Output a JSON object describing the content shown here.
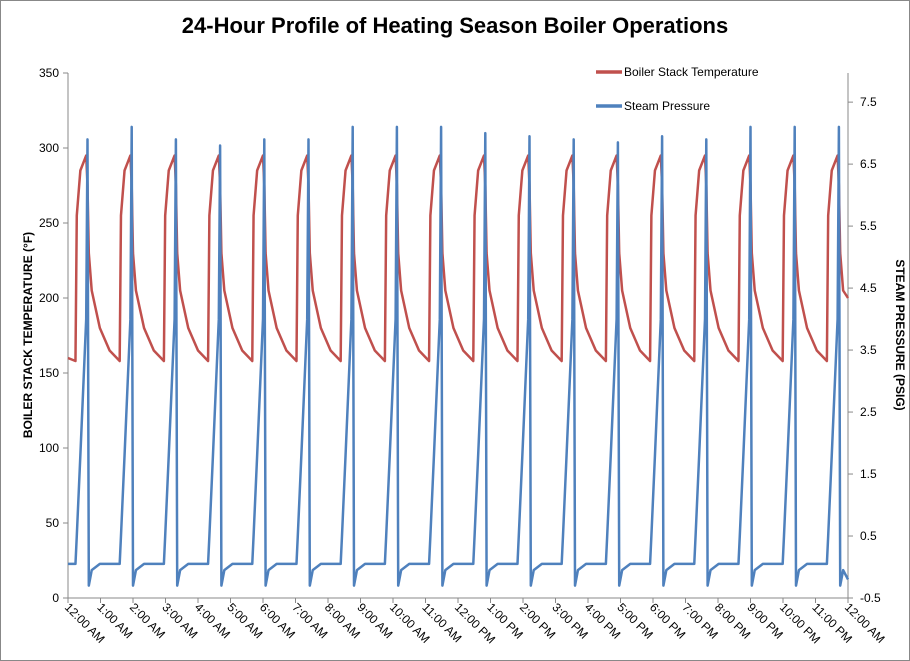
{
  "chart_data": {
    "type": "line",
    "title": "24-Hour Profile of Heating Season Boiler Operations",
    "ylabel": "BOILER STACK TEMPERATURE (°F)",
    "y2label": "STEAM PRESSURE (PSIG)",
    "legend": "top-right",
    "xlim": [
      0,
      24
    ],
    "xticks": [
      {
        "value": 0,
        "label": "12:00 AM"
      },
      {
        "value": 1,
        "label": "1:00 AM"
      },
      {
        "value": 2,
        "label": "2:00 AM"
      },
      {
        "value": 3,
        "label": "3:00 AM"
      },
      {
        "value": 4,
        "label": "4:00 AM"
      },
      {
        "value": 5,
        "label": "5:00 AM"
      },
      {
        "value": 6,
        "label": "6:00 AM"
      },
      {
        "value": 7,
        "label": "7:00 AM"
      },
      {
        "value": 8,
        "label": "8:00 AM"
      },
      {
        "value": 9,
        "label": "9:00 AM"
      },
      {
        "value": 10,
        "label": "10:00 AM"
      },
      {
        "value": 11,
        "label": "11:00 AM"
      },
      {
        "value": 12,
        "label": "12:00 PM"
      },
      {
        "value": 13,
        "label": "1:00 PM"
      },
      {
        "value": 14,
        "label": "2:00 PM"
      },
      {
        "value": 15,
        "label": "3:00 PM"
      },
      {
        "value": 16,
        "label": "4:00 PM"
      },
      {
        "value": 17,
        "label": "5:00 PM"
      },
      {
        "value": 18,
        "label": "6:00 PM"
      },
      {
        "value": 19,
        "label": "7:00 PM"
      },
      {
        "value": 20,
        "label": "8:00 PM"
      },
      {
        "value": 21,
        "label": "9:00 PM"
      },
      {
        "value": 22,
        "label": "10:00 PM"
      },
      {
        "value": 23,
        "label": "11:00 PM"
      },
      {
        "value": 24,
        "label": "12:00 AM"
      }
    ],
    "ylim": [
      0,
      350
    ],
    "yticks": [
      0,
      50,
      100,
      150,
      200,
      250,
      300,
      350
    ],
    "y2lim": [
      -0.5,
      7.97
    ],
    "y2ticks": [
      -0.5,
      0.5,
      1.5,
      2.5,
      3.5,
      4.5,
      5.5,
      6.5,
      7.5
    ],
    "x": [
      0,
      0.23,
      0.27,
      0.38,
      0.56,
      0.6,
      0.64,
      0.73,
      0.98,
      1.28,
      1.59,
      1.63,
      1.74,
      1.92,
      1.96,
      2.0,
      2.09,
      2.34,
      2.64,
      2.95,
      2.99,
      3.1,
      3.28,
      3.32,
      3.36,
      3.45,
      3.7,
      4.0,
      4.31,
      4.35,
      4.46,
      4.64,
      4.68,
      4.72,
      4.81,
      5.06,
      5.36,
      5.67,
      5.71,
      5.82,
      6.0,
      6.04,
      6.08,
      6.17,
      6.42,
      6.72,
      7.03,
      7.07,
      7.18,
      7.36,
      7.4,
      7.44,
      7.53,
      7.78,
      8.08,
      8.39,
      8.43,
      8.54,
      8.72,
      8.76,
      8.8,
      8.89,
      9.14,
      9.44,
      9.75,
      9.79,
      9.9,
      10.08,
      10.12,
      10.16,
      10.25,
      10.5,
      10.8,
      11.11,
      11.15,
      11.26,
      11.44,
      11.48,
      11.52,
      11.61,
      11.86,
      12.16,
      12.47,
      12.51,
      12.62,
      12.8,
      12.84,
      12.88,
      12.97,
      13.22,
      13.52,
      13.83,
      13.87,
      13.98,
      14.16,
      14.2,
      14.24,
      14.33,
      14.58,
      14.88,
      15.19,
      15.23,
      15.34,
      15.52,
      15.56,
      15.6,
      15.69,
      15.94,
      16.24,
      16.55,
      16.59,
      16.7,
      16.88,
      16.92,
      16.96,
      17.05,
      17.3,
      17.6,
      17.91,
      17.95,
      18.06,
      18.24,
      18.28,
      18.32,
      18.41,
      18.66,
      18.96,
      19.27,
      19.31,
      19.42,
      19.6,
      19.64,
      19.68,
      19.77,
      20.02,
      20.32,
      20.63,
      20.67,
      20.78,
      20.96,
      21.0,
      21.04,
      21.13,
      21.38,
      21.68,
      21.99,
      22.03,
      22.14,
      22.32,
      22.36,
      22.4,
      22.49,
      22.74,
      23.04,
      23.35,
      23.39,
      23.5,
      23.68,
      23.72,
      23.76,
      23.85,
      24.0
    ],
    "series": [
      {
        "name": "Boiler Stack Temperature",
        "color": "#c0504d",
        "values": [
          160,
          158,
          255,
          285,
          295,
          275,
          230,
          205,
          180,
          165,
          158,
          255,
          285,
          295,
          275,
          230,
          205,
          180,
          165,
          158,
          255,
          285,
          295,
          275,
          230,
          205,
          180,
          165,
          158,
          255,
          285,
          295,
          275,
          230,
          205,
          180,
          165,
          158,
          255,
          285,
          295,
          275,
          230,
          205,
          180,
          165,
          158,
          255,
          285,
          295,
          275,
          230,
          205,
          180,
          165,
          158,
          255,
          285,
          295,
          275,
          230,
          205,
          180,
          165,
          158,
          255,
          285,
          295,
          275,
          230,
          205,
          180,
          165,
          158,
          255,
          285,
          295,
          275,
          230,
          205,
          180,
          165,
          158,
          255,
          285,
          295,
          275,
          230,
          205,
          180,
          165,
          158,
          255,
          285,
          295,
          275,
          230,
          205,
          180,
          165,
          158,
          255,
          285,
          295,
          275,
          230,
          205,
          180,
          165,
          158,
          255,
          285,
          295,
          275,
          230,
          205,
          180,
          165,
          158,
          255,
          285,
          295,
          275,
          230,
          205,
          180,
          165,
          158,
          255,
          285,
          295,
          275,
          230,
          205,
          180,
          165,
          158,
          255,
          285,
          295,
          275,
          230,
          205,
          180,
          165,
          158,
          255,
          285,
          295,
          275,
          230,
          205,
          180,
          165,
          158,
          255,
          285,
          295,
          275,
          230,
          205,
          200
        ]
      },
      {
        "name": "Steam Pressure",
        "color": "#4f81bd",
        "axis": "y2",
        "values": [
          0.05,
          0.05,
          0.5,
          1.8,
          4.0,
          6.9,
          -0.3,
          -0.05,
          0.05,
          0.05,
          0.05,
          0.5,
          1.8,
          4.0,
          7.1,
          -0.3,
          -0.05,
          0.05,
          0.05,
          0.05,
          0.5,
          1.8,
          4.0,
          6.9,
          -0.3,
          -0.05,
          0.05,
          0.05,
          0.05,
          0.5,
          1.8,
          4.0,
          6.8,
          -0.3,
          -0.05,
          0.05,
          0.05,
          0.05,
          0.5,
          1.8,
          4.0,
          6.9,
          -0.3,
          -0.05,
          0.05,
          0.05,
          0.05,
          0.5,
          1.8,
          4.0,
          6.9,
          -0.3,
          -0.05,
          0.05,
          0.05,
          0.05,
          0.5,
          1.8,
          4.0,
          7.1,
          -0.3,
          -0.05,
          0.05,
          0.05,
          0.05,
          0.5,
          1.8,
          4.0,
          7.1,
          -0.3,
          -0.05,
          0.05,
          0.05,
          0.05,
          0.5,
          1.8,
          4.0,
          7.1,
          -0.3,
          -0.05,
          0.05,
          0.05,
          0.05,
          0.5,
          1.8,
          4.0,
          7.0,
          -0.3,
          -0.05,
          0.05,
          0.05,
          0.05,
          0.5,
          1.8,
          4.0,
          6.95,
          -0.3,
          -0.05,
          0.05,
          0.05,
          0.05,
          0.5,
          1.8,
          4.0,
          6.9,
          -0.3,
          -0.05,
          0.05,
          0.05,
          0.05,
          0.5,
          1.8,
          4.0,
          6.85,
          -0.3,
          -0.05,
          0.05,
          0.05,
          0.05,
          0.5,
          1.8,
          4.0,
          6.95,
          -0.3,
          -0.05,
          0.05,
          0.05,
          0.05,
          0.5,
          1.8,
          4.0,
          6.9,
          -0.3,
          -0.05,
          0.05,
          0.05,
          0.05,
          0.5,
          1.8,
          4.0,
          7.1,
          -0.3,
          -0.05,
          0.05,
          0.05,
          0.05,
          0.5,
          1.8,
          4.0,
          7.1,
          -0.3,
          -0.05,
          0.05,
          0.05,
          0.05,
          0.5,
          1.8,
          4.0,
          7.1,
          -0.3,
          -0.05,
          -0.2
        ]
      }
    ]
  }
}
